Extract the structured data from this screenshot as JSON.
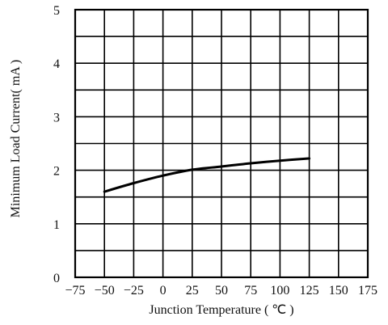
{
  "chart_data": {
    "type": "line",
    "title": "",
    "xlabel": "Junction Temperature ( ℃ )",
    "ylabel": "Minimum Load Current( mA )",
    "xlim": [
      -75,
      175
    ],
    "ylim": [
      0,
      5
    ],
    "x_ticks": [
      "-75",
      "-50",
      "-25",
      "0",
      "25",
      "50",
      "75",
      "100",
      "125",
      "150",
      "175"
    ],
    "y_ticks": [
      "0",
      "1",
      "2",
      "3",
      "4",
      "5"
    ],
    "x_minor_divisions": 10,
    "y_minor_divisions": 10,
    "grid": true,
    "series": [
      {
        "x": [
          -50,
          -25,
          0,
          25,
          50,
          75,
          100,
          125
        ],
        "y": [
          1.6,
          1.76,
          1.9,
          2.01,
          2.07,
          2.13,
          2.18,
          2.22
        ]
      }
    ]
  }
}
